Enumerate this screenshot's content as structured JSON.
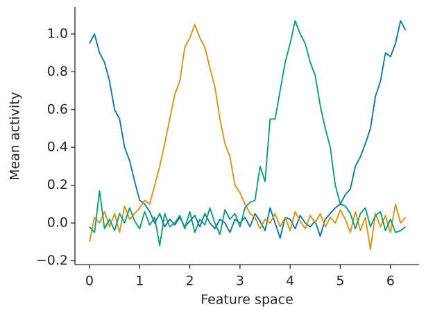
{
  "chart_data": {
    "type": "line",
    "xlabel": "Feature space",
    "ylabel": "Mean activity",
    "x": [
      0,
      0.1,
      0.2,
      0.3,
      0.4,
      0.5,
      0.6,
      0.7,
      0.8,
      0.9,
      1.0,
      1.1,
      1.2,
      1.3,
      1.4,
      1.5,
      1.6,
      1.7,
      1.8,
      1.9,
      2.0,
      2.1,
      2.2,
      2.3,
      2.4,
      2.5,
      2.6,
      2.7,
      2.8,
      2.9,
      3.0,
      3.1,
      3.2,
      3.3,
      3.4,
      3.5,
      3.6,
      3.7,
      3.8,
      3.9,
      4.0,
      4.1,
      4.2,
      4.3,
      4.4,
      4.5,
      4.6,
      4.7,
      4.8,
      4.9,
      5.0,
      5.1,
      5.2,
      5.3,
      5.4,
      5.5,
      5.6,
      5.7,
      5.8,
      5.9,
      6.0,
      6.1,
      6.2,
      6.3
    ],
    "series": [
      {
        "color": "#0173b2",
        "values": [
          0.95,
          1.0,
          0.9,
          0.85,
          0.75,
          0.6,
          0.55,
          0.4,
          0.33,
          0.22,
          0.12,
          0.1,
          0.06,
          0.0,
          0.05,
          -0.02,
          0.02,
          -0.01,
          0.03,
          -0.02,
          0.01,
          0.04,
          -0.02,
          0.05,
          0.0,
          -0.03,
          0.02,
          0.0,
          -0.05,
          0.02,
          0.0,
          0.03,
          -0.02,
          0.05,
          0.01,
          -0.04,
          0.08,
          0.0,
          -0.08,
          0.03,
          0.02,
          -0.03,
          0.04,
          0.0,
          -0.02,
          0.01,
          -0.07,
          0.02,
          0.05,
          0.08,
          0.1,
          0.15,
          0.18,
          0.3,
          0.35,
          0.42,
          0.5,
          0.67,
          0.75,
          0.9,
          0.88,
          0.95,
          1.07,
          1.02
        ]
      },
      {
        "color": "#de8f05",
        "values": [
          -0.1,
          0.03,
          0.0,
          0.06,
          -0.02,
          0.05,
          -0.05,
          0.09,
          0.02,
          0.05,
          0.08,
          0.12,
          0.1,
          0.2,
          0.3,
          0.42,
          0.55,
          0.68,
          0.75,
          0.93,
          0.98,
          1.05,
          0.98,
          0.93,
          0.82,
          0.72,
          0.55,
          0.42,
          0.35,
          0.2,
          0.16,
          0.1,
          0.05,
          0.03,
          -0.03,
          0.02,
          0.0,
          0.05,
          -0.02,
          0.03,
          -0.04,
          0.06,
          0.01,
          -0.03,
          0.04,
          0.0,
          0.05,
          -0.02,
          0.03,
          0.0,
          0.07,
          0.02,
          -0.05,
          0.06,
          -0.04,
          0.03,
          -0.14,
          0.05,
          -0.02,
          0.04,
          -0.05,
          0.1,
          0.0,
          0.03
        ]
      },
      {
        "color": "#029e73",
        "values": [
          -0.02,
          -0.05,
          0.17,
          -0.03,
          0.02,
          -0.04,
          0.05,
          0.0,
          0.08,
          0.01,
          -0.03,
          0.06,
          -0.01,
          0.03,
          -0.12,
          0.05,
          -0.02,
          0.0,
          0.04,
          -0.03,
          0.06,
          -0.05,
          0.02,
          -0.01,
          0.08,
          0.0,
          -0.06,
          0.07,
          0.02,
          0.05,
          -0.02,
          0.08,
          0.11,
          0.12,
          0.3,
          0.22,
          0.55,
          0.55,
          0.7,
          0.85,
          0.95,
          1.07,
          1.0,
          0.95,
          0.85,
          0.78,
          0.62,
          0.5,
          0.4,
          0.2,
          0.1,
          0.09,
          0.05,
          -0.03,
          0.05,
          0.08,
          -0.02,
          0.04,
          0.06,
          -0.04,
          0.02,
          -0.05,
          -0.04,
          -0.02
        ]
      }
    ],
    "xlim": [
      -0.29,
      6.57
    ],
    "xticks": [
      0,
      1,
      2,
      3,
      4,
      5,
      6
    ],
    "ylim": [
      -0.22,
      1.143
    ],
    "yticks": [
      {
        "value": -0.2,
        "label": "−0.2"
      },
      {
        "value": 0,
        "label": "0.0"
      },
      {
        "value": 0.2,
        "label": "0.2"
      },
      {
        "value": 0.4,
        "label": "0.4"
      },
      {
        "value": 0.6,
        "label": "0.6"
      },
      {
        "value": 0.8,
        "label": "0.8"
      },
      {
        "value": 1.0,
        "label": "1.0"
      }
    ],
    "grid": false
  }
}
